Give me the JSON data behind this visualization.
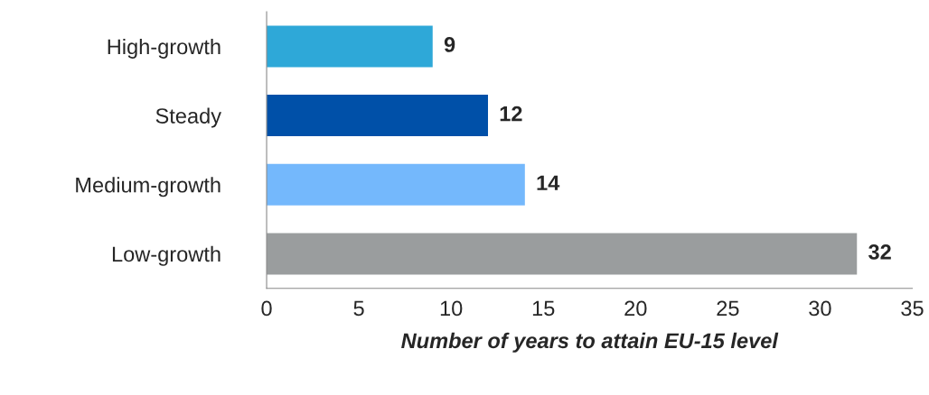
{
  "chart_data": {
    "type": "bar",
    "orientation": "horizontal",
    "categories": [
      "High-growth",
      "Steady",
      "Medium-growth",
      "Low-growth"
    ],
    "values": [
      9,
      12,
      14,
      32
    ],
    "colors": [
      "#2ea8d8",
      "#0050a8",
      "#74b8fc",
      "#9a9d9e"
    ],
    "xlabel": "Number of years to attain EU-15 level",
    "xlim": [
      0,
      35
    ],
    "xticks": [
      0,
      5,
      10,
      15,
      20,
      25,
      30,
      35
    ],
    "data_labels": true,
    "grid": false,
    "legend": false
  }
}
